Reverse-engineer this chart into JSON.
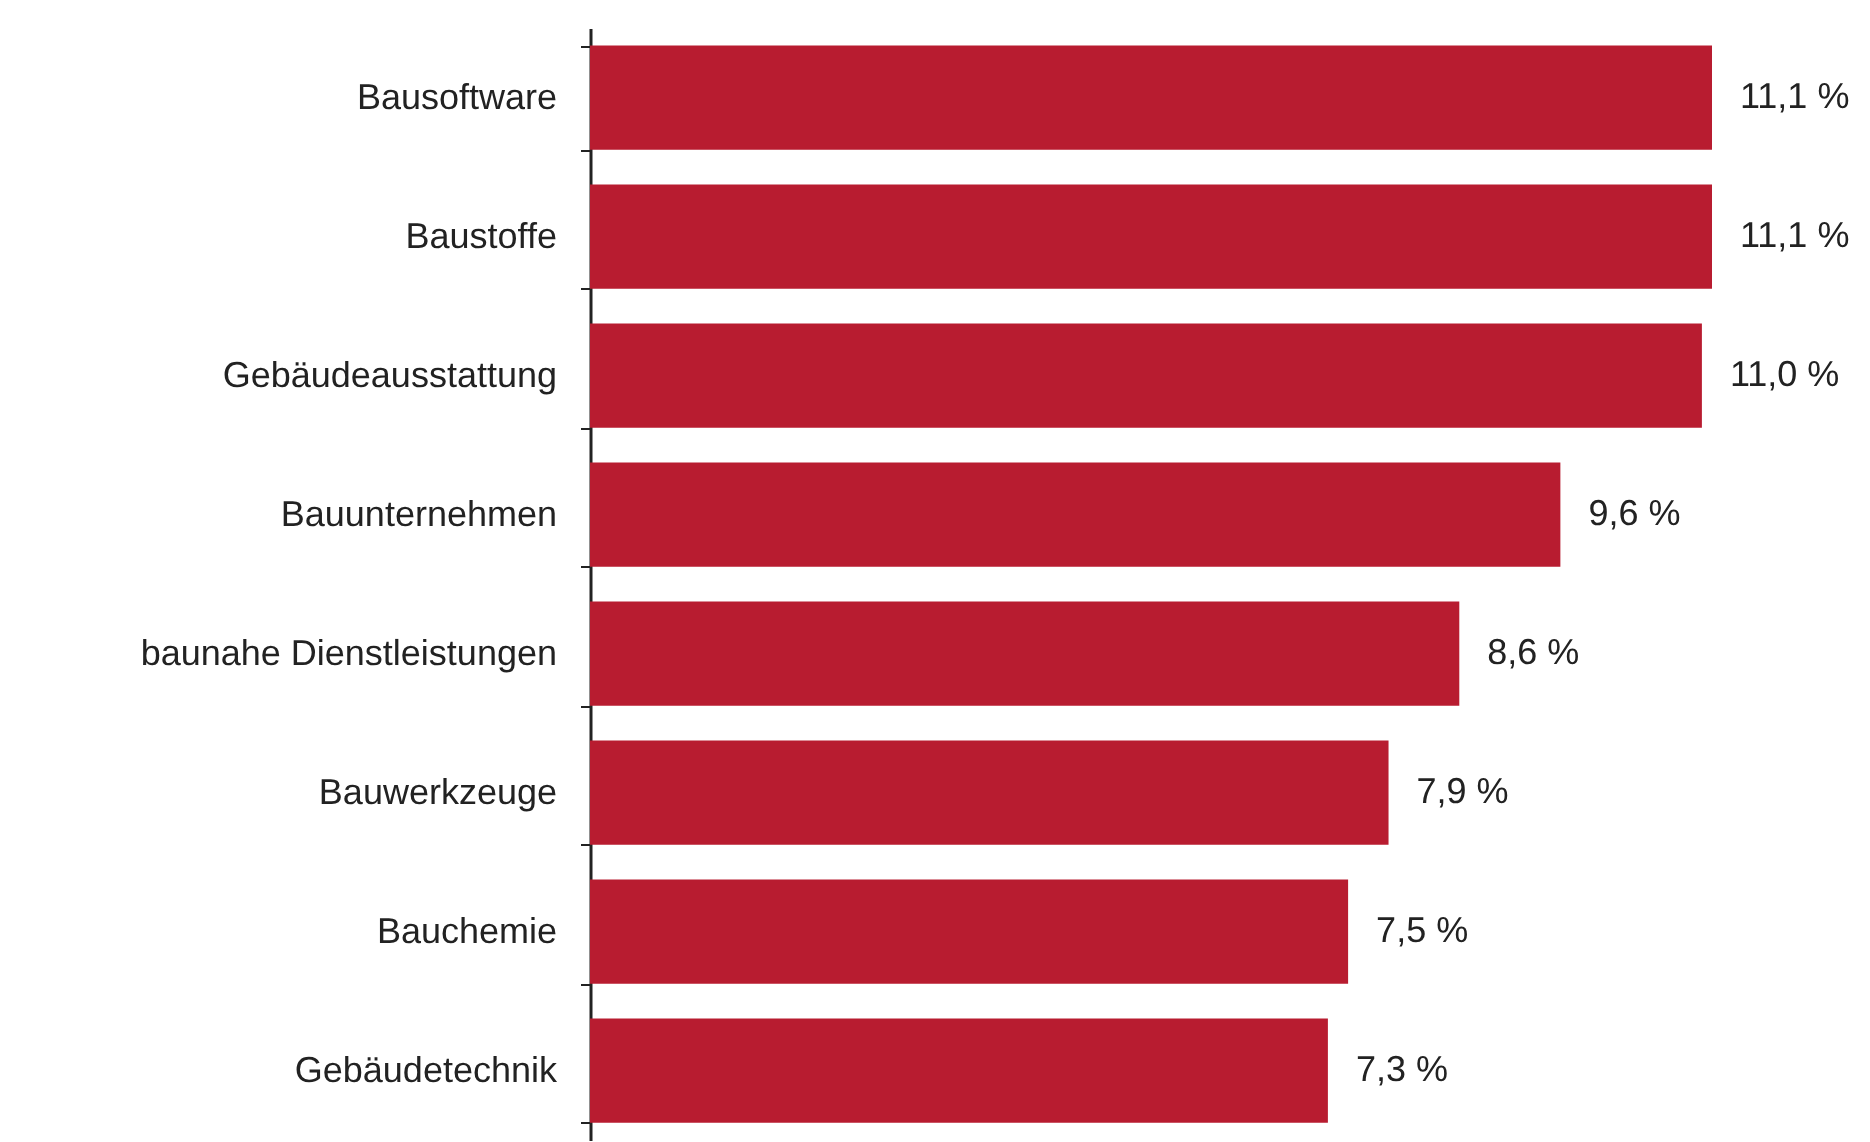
{
  "chart_data": {
    "type": "bar",
    "orientation": "horizontal",
    "categories": [
      "Bausoftware",
      "Baustoffe",
      "Gebäudeausstattung",
      "Bauunternehmen",
      "baunahe Dienstleistungen",
      "Bauwerkzeuge",
      "Bauchemie",
      "Gebäudetechnik"
    ],
    "values": [
      11.1,
      11.1,
      11.0,
      9.6,
      8.6,
      7.9,
      7.5,
      7.3
    ],
    "color": "#b81c30",
    "value_labels": [
      "11,1 %",
      "11,1 %",
      "11,0 %",
      "9,6 %",
      "8,6 %",
      "7,9 %",
      "7,5 %",
      "7,3 %"
    ]
  }
}
